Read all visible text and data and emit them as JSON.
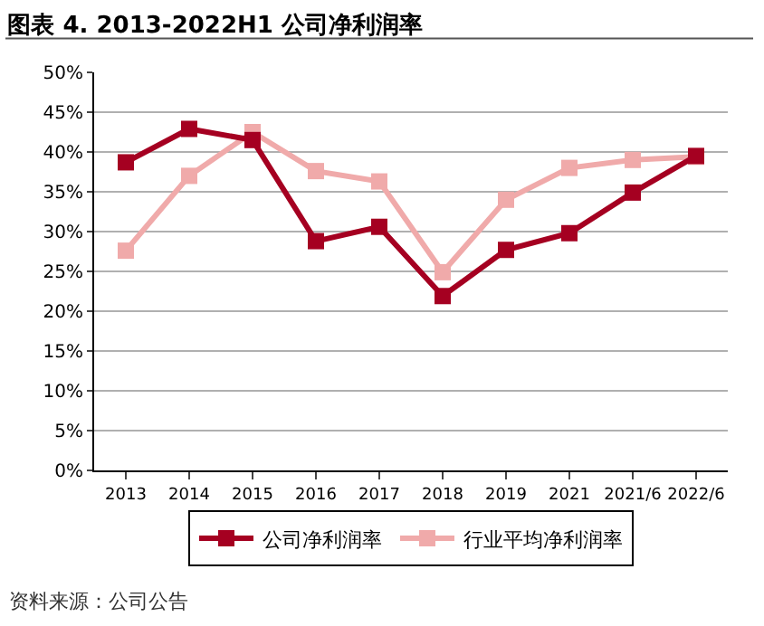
{
  "chart_data": {
    "type": "line",
    "title": "图表 4. 2013-2022H1 公司净利润率",
    "categories": [
      "2013",
      "2014",
      "2015",
      "2016",
      "2017",
      "2018",
      "2019",
      "2021",
      "2021/6",
      "2022/6"
    ],
    "series": [
      {
        "name": "公司净利润率",
        "color": "#a50021",
        "values": [
          38.7,
          42.9,
          41.5,
          28.8,
          30.6,
          21.9,
          27.7,
          29.8,
          34.9,
          39.5
        ]
      },
      {
        "name": "行业平均净利润率",
        "color": "#f0aaaa",
        "values": [
          27.6,
          37.0,
          42.5,
          37.6,
          36.3,
          24.9,
          34.0,
          38.0,
          39.0,
          39.4
        ]
      }
    ],
    "ylim": [
      0,
      50
    ],
    "yticks": [
      {
        "value": 0,
        "label": "0%"
      },
      {
        "value": 5,
        "label": "5%"
      },
      {
        "value": 10,
        "label": "10%"
      },
      {
        "value": 15,
        "label": "15%"
      },
      {
        "value": 20,
        "label": "20%"
      },
      {
        "value": 25,
        "label": "25%"
      },
      {
        "value": 30,
        "label": "30%"
      },
      {
        "value": 35,
        "label": "35%"
      },
      {
        "value": 40,
        "label": "40%"
      },
      {
        "value": 45,
        "label": "45%"
      },
      {
        "value": 50,
        "label": "50%"
      }
    ],
    "grid": "y",
    "legend": "bottom",
    "marker": "square",
    "line_style": "solid",
    "annotations": [
      "资料来源：公司公告"
    ]
  }
}
